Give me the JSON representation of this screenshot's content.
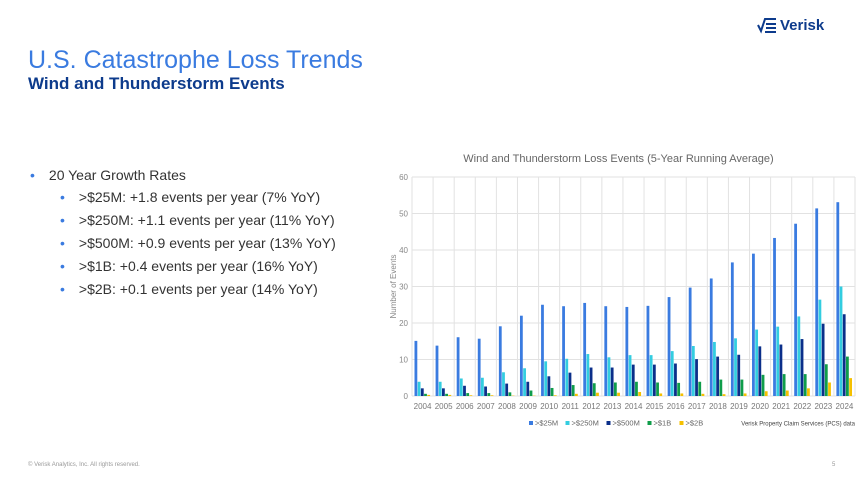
{
  "header": {
    "title": "U.S. Catastrophe Loss Trends",
    "subtitle": "Wind and Thunderstorm Events",
    "logo_text": "Verisk"
  },
  "bullets": {
    "heading": "20 Year Growth Rates",
    "items": [
      ">$25M: +1.8 events per year (7% YoY)",
      ">$250M: +1.1 events per year (11% YoY)",
      ">$500M: +0.9 events per year (13% YoY)",
      ">$1B: +0.4 events per year (16% YoY)",
      ">$2B: +0.1 events per year (14% YoY)"
    ]
  },
  "footer": {
    "copyright": "© Verisk Analytics, Inc. All rights reserved.",
    "page": "5"
  },
  "chart_data": {
    "type": "bar",
    "title": "Wind and Thunderstorm Loss Events (5-Year Running Average)",
    "xlabel": "",
    "ylabel": "Number of Events",
    "ylim": [
      0,
      60
    ],
    "yticks": [
      0,
      10,
      20,
      30,
      40,
      50,
      60
    ],
    "source": "Verisk Property Claim Services (PCS) data",
    "legend_position": "bottom",
    "categories": [
      "2004",
      "2005",
      "2006",
      "2007",
      "2008",
      "2009",
      "2010",
      "2011",
      "2012",
      "2013",
      "2014",
      "2015",
      "2016",
      "2017",
      "2018",
      "2019",
      "2020",
      "2021",
      "2022",
      "2023",
      "2024"
    ],
    "series": [
      {
        "name": ">$25M",
        "color": "#3a7be0",
        "values": [
          15.1,
          13.8,
          16.1,
          15.7,
          19.1,
          22,
          25,
          24.6,
          25.5,
          24.6,
          24.4,
          24.7,
          27.1,
          29.7,
          32.2,
          36.6,
          39,
          43.3,
          47.2,
          51.4,
          53.1
        ]
      },
      {
        "name": ">$250M",
        "color": "#33cde0",
        "values": [
          3.9,
          3.9,
          4.8,
          5,
          6.5,
          7.6,
          9.5,
          10.2,
          11.5,
          10.6,
          11.2,
          11.2,
          12.3,
          13.7,
          14.8,
          15.8,
          18.2,
          19,
          21.8,
          26.4,
          30
        ]
      },
      {
        "name": ">$500M",
        "color": "#0b2f8a",
        "values": [
          2.1,
          2.1,
          2.8,
          2.6,
          3.4,
          3.9,
          5.4,
          6.4,
          7.8,
          7.8,
          8.6,
          8.6,
          8.9,
          10.1,
          10.8,
          11.3,
          13.6,
          14.1,
          15.6,
          19.8,
          22.4
        ]
      },
      {
        "name": ">$1B",
        "color": "#0f9d4a",
        "values": [
          0.6,
          0.6,
          0.8,
          0.8,
          1,
          1.5,
          2.2,
          3,
          3.5,
          3.7,
          3.9,
          3.7,
          3.6,
          3.9,
          4.5,
          4.5,
          5.8,
          6,
          6,
          8.7,
          10.8
        ]
      },
      {
        "name": ">$2B",
        "color": "#f5c000",
        "values": [
          0.3,
          0.3,
          0.2,
          0.2,
          0.1,
          0.1,
          0.2,
          0.6,
          0.9,
          0.9,
          1.1,
          0.7,
          0.7,
          0.6,
          0.5,
          0.7,
          1.3,
          1.5,
          2.1,
          3.7,
          4.9
        ]
      }
    ]
  }
}
